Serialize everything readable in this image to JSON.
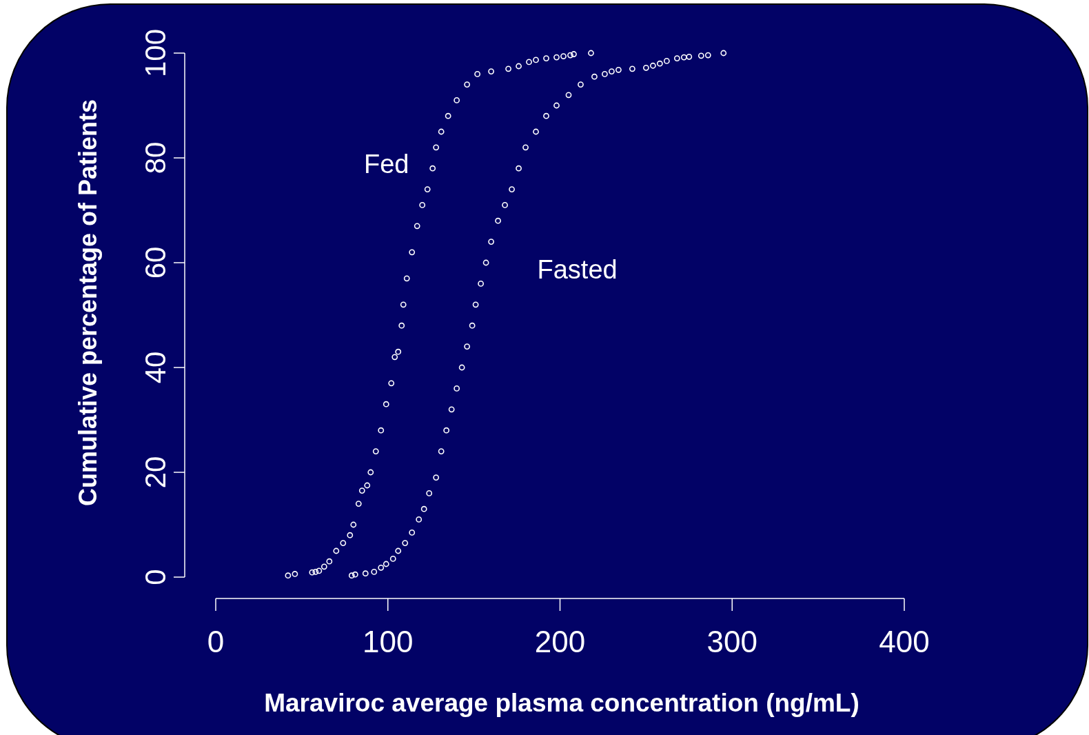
{
  "chart_data": {
    "type": "scatter",
    "xlabel": "Maraviroc average plasma concentration (ng/mL)",
    "ylabel": "Cumulative percentage of Patients",
    "xlim": [
      0,
      400
    ],
    "xticks": [
      0,
      100,
      200,
      300,
      400
    ],
    "ylim": [
      0,
      100
    ],
    "yticks": [
      0,
      20,
      40,
      60,
      80,
      100
    ],
    "grid": false,
    "marker": "circle",
    "series": [
      {
        "name": "Fed",
        "color": "#ffffff",
        "x": [
          42,
          46,
          56,
          58,
          60,
          63,
          66,
          70,
          74,
          78,
          80,
          83,
          85,
          88,
          90,
          93,
          96,
          99,
          102,
          104,
          106,
          108,
          109,
          111,
          114,
          117,
          120,
          123,
          126,
          128,
          131,
          135,
          140,
          146,
          152,
          160,
          170,
          176,
          182,
          186,
          192,
          198,
          202,
          206,
          208,
          218
        ],
        "values": [
          0.3,
          0.6,
          0.9,
          1,
          1.2,
          2,
          3,
          5,
          6.5,
          8,
          10,
          14,
          16.5,
          17.5,
          20,
          24,
          28,
          33,
          37,
          42,
          43,
          48,
          52,
          57,
          62,
          67,
          71,
          74,
          78,
          82,
          85,
          88,
          91,
          94,
          96,
          96.5,
          97,
          97.5,
          98.3,
          98.7,
          99,
          99.2,
          99.4,
          99.6,
          99.8,
          100
        ]
      },
      {
        "name": "Fasted",
        "color": "#ffffff",
        "x": [
          79,
          81,
          87,
          92,
          96,
          99,
          103,
          106,
          110,
          114,
          118,
          121,
          124,
          128,
          131,
          134,
          137,
          140,
          143,
          146,
          149,
          151,
          154,
          157,
          160,
          164,
          168,
          172,
          176,
          180,
          186,
          192,
          198,
          205,
          212,
          220,
          226,
          230,
          234,
          242,
          250,
          254,
          258,
          262,
          268,
          272,
          275,
          282,
          286,
          295
        ],
        "values": [
          0.3,
          0.5,
          0.7,
          1,
          1.8,
          2.5,
          3.5,
          5,
          6.5,
          8.5,
          11,
          13,
          16,
          19,
          24,
          28,
          32,
          36,
          40,
          44,
          48,
          52,
          56,
          60,
          64,
          68,
          71,
          74,
          78,
          82,
          85,
          88,
          90,
          92,
          94,
          95.5,
          96,
          96.5,
          96.8,
          97,
          97.2,
          97.6,
          98,
          98.5,
          99,
          99.2,
          99.3,
          99.5,
          99.6,
          100
        ]
      }
    ]
  }
}
